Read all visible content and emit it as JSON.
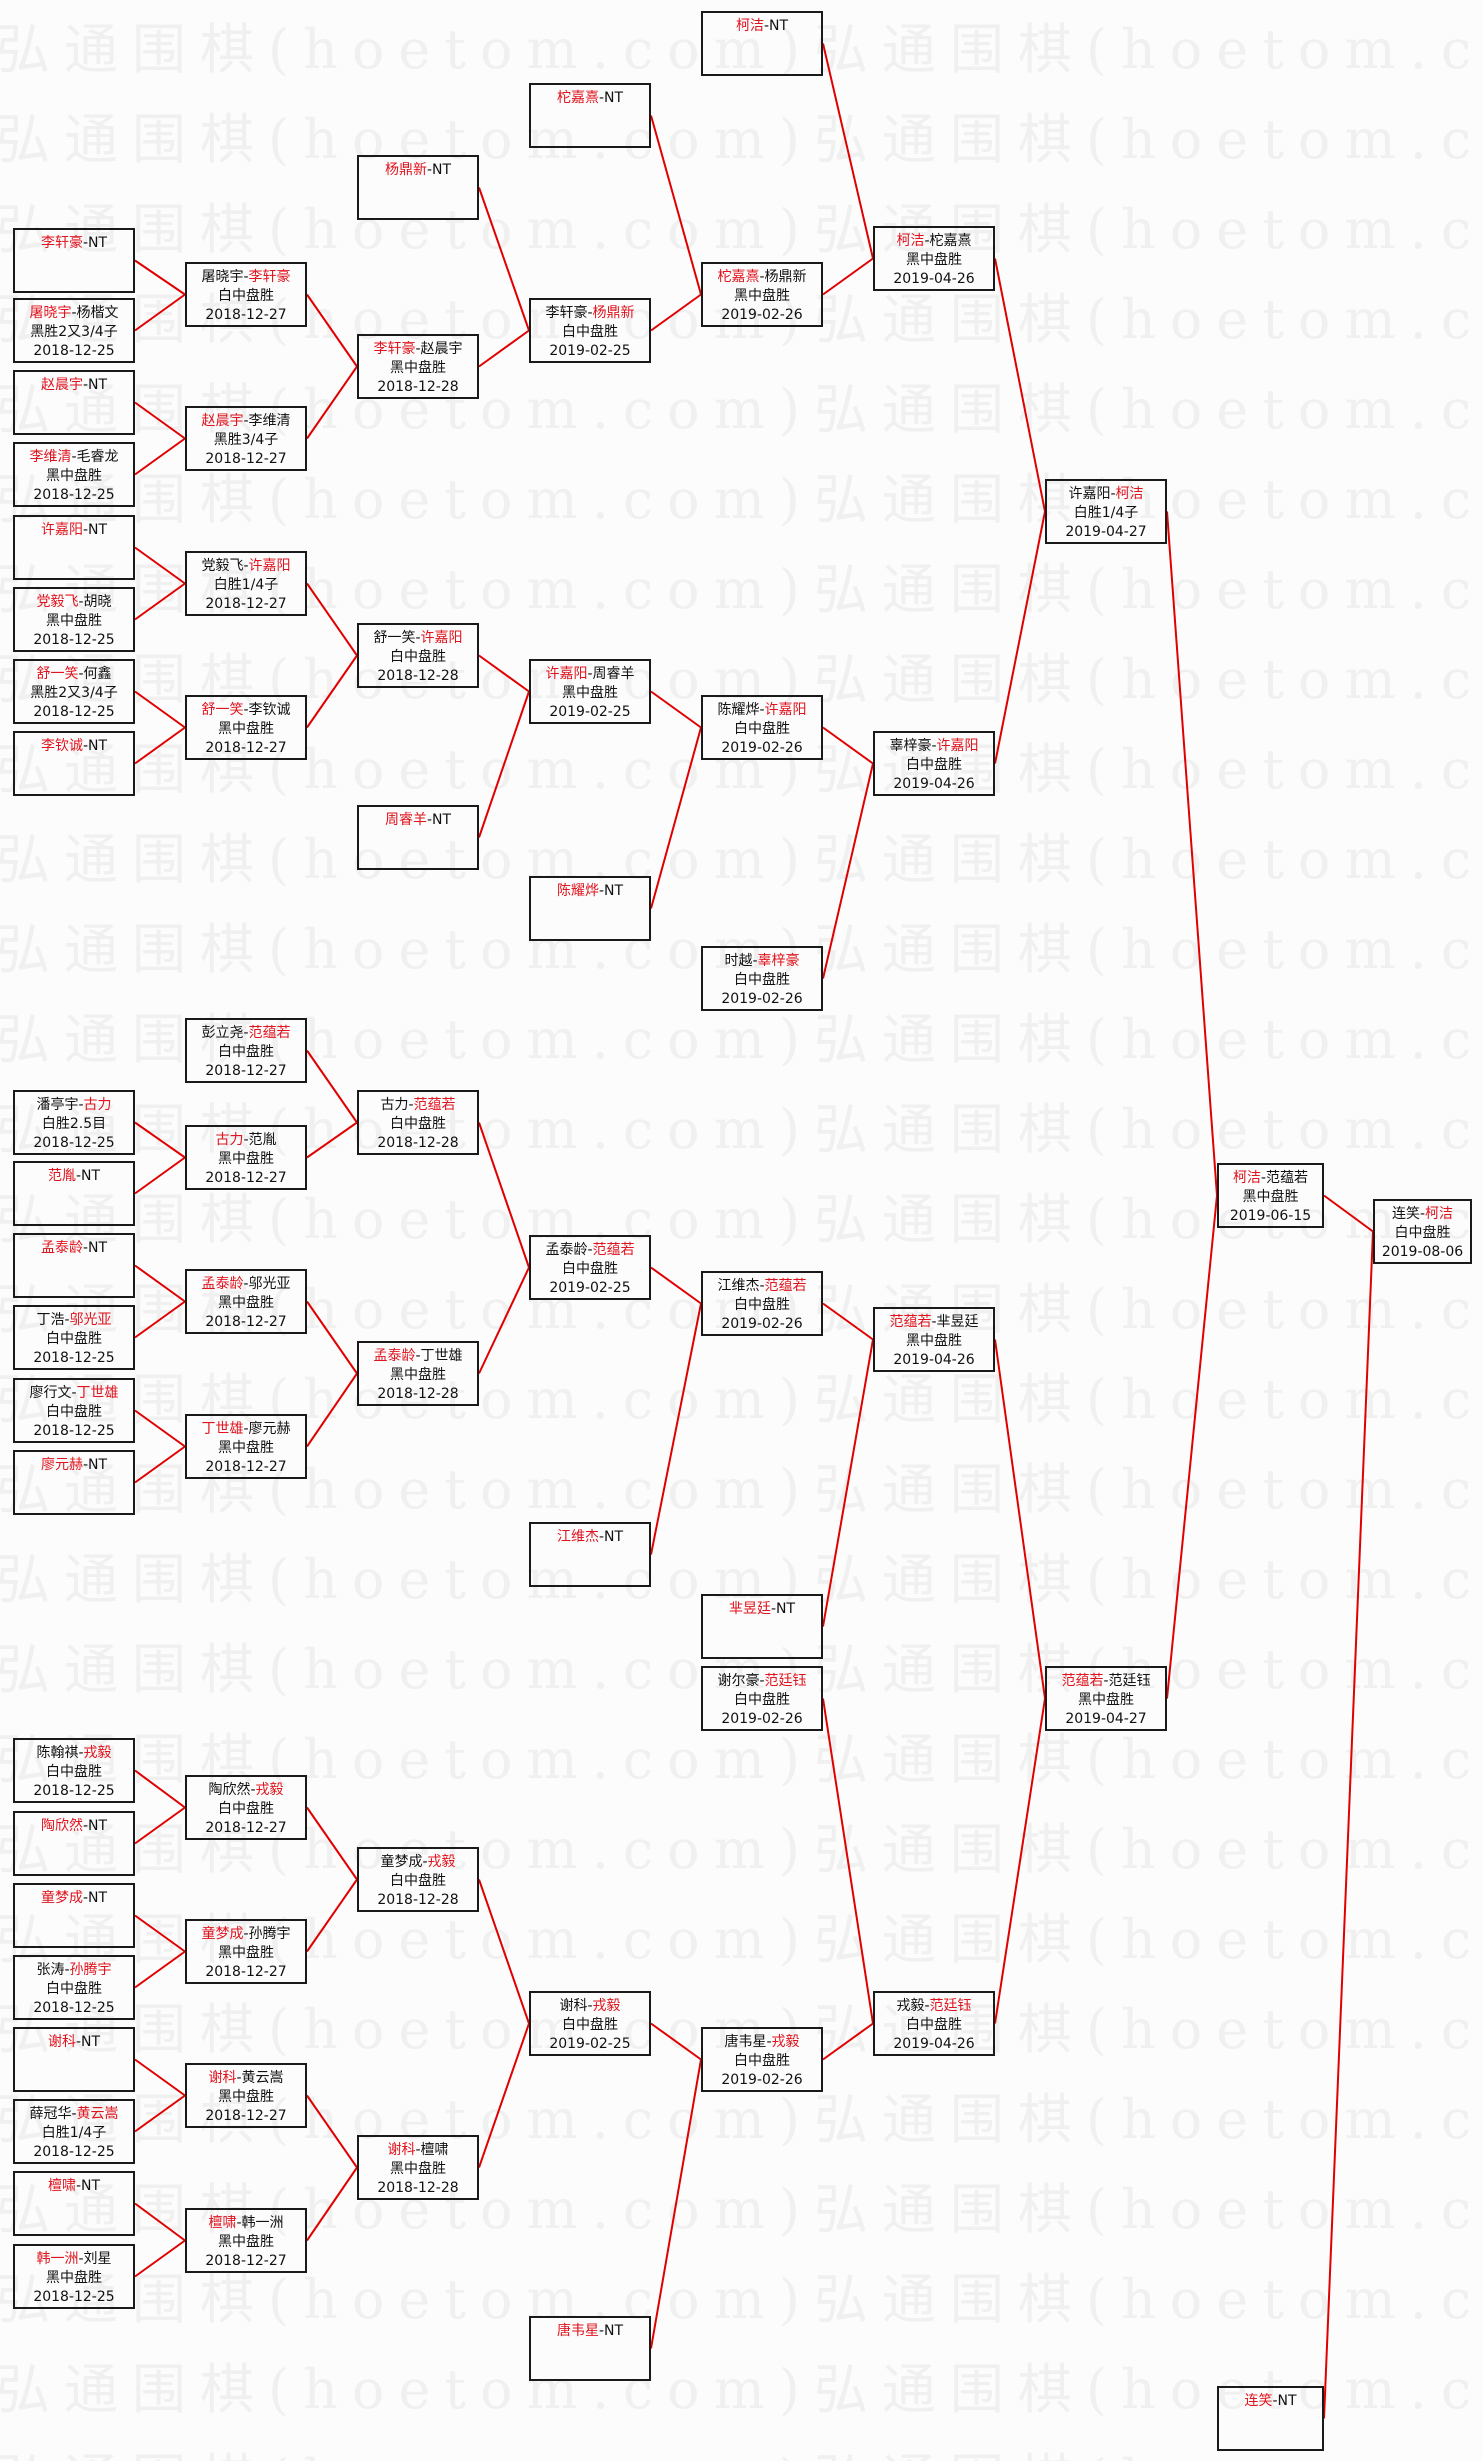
{
  "watermark": "弘通围棋(hoetom.com)",
  "colors": {
    "winner": "#e0141e",
    "connector": "#e00000",
    "border": "#1a1a1a"
  },
  "matches": [
    {
      "id": "c1_1",
      "a": "李轩豪",
      "b": "NT",
      "winner": "a",
      "next": "c2_1"
    },
    {
      "id": "c1_2",
      "a": "屠晓宇",
      "b": "杨楷文",
      "winner": "a",
      "result": "黑胜2又3/4子",
      "date": "2018-12-25",
      "next": "c2_1"
    },
    {
      "id": "c1_3",
      "a": "赵晨宇",
      "b": "NT",
      "winner": "a",
      "next": "c2_2"
    },
    {
      "id": "c1_4",
      "a": "李维清",
      "b": "毛睿龙",
      "winner": "a",
      "result": "黑中盘胜",
      "date": "2018-12-25",
      "next": "c2_2"
    },
    {
      "id": "c1_5",
      "a": "许嘉阳",
      "b": "NT",
      "winner": "a",
      "next": "c2_3"
    },
    {
      "id": "c1_6",
      "a": "党毅飞",
      "b": "胡晓",
      "winner": "a",
      "result": "黑中盘胜",
      "date": "2018-12-25",
      "next": "c2_3"
    },
    {
      "id": "c1_7",
      "a": "舒一笑",
      "b": "何鑫",
      "winner": "a",
      "result": "黑胜2又3/4子",
      "date": "2018-12-25",
      "next": "c2_4"
    },
    {
      "id": "c1_8",
      "a": "李钦诚",
      "b": "NT",
      "winner": "a",
      "next": "c2_4"
    },
    {
      "id": "c1_9",
      "a": "潘亭宇",
      "b": "古力",
      "winner": "b",
      "result": "白胜2.5目",
      "date": "2018-12-25",
      "next": "c2_6"
    },
    {
      "id": "c1_10",
      "a": "范胤",
      "b": "NT",
      "winner": "a",
      "next": "c2_6"
    },
    {
      "id": "c1_11",
      "a": "孟泰龄",
      "b": "NT",
      "winner": "a",
      "next": "c2_7"
    },
    {
      "id": "c1_12",
      "a": "丁浩",
      "b": "邬光亚",
      "winner": "b",
      "result": "白中盘胜",
      "date": "2018-12-25",
      "next": "c2_7"
    },
    {
      "id": "c1_13",
      "a": "廖行文",
      "b": "丁世雄",
      "winner": "b",
      "result": "白中盘胜",
      "date": "2018-12-25",
      "next": "c2_8"
    },
    {
      "id": "c1_14",
      "a": "廖元赫",
      "b": "NT",
      "winner": "a",
      "next": "c2_8"
    },
    {
      "id": "c1_15",
      "a": "陈翰祺",
      "b": "戎毅",
      "winner": "b",
      "result": "白中盘胜",
      "date": "2018-12-25",
      "next": "c2_9"
    },
    {
      "id": "c1_16",
      "a": "陶欣然",
      "b": "NT",
      "winner": "a",
      "next": "c2_9"
    },
    {
      "id": "c1_17",
      "a": "童梦成",
      "b": "NT",
      "winner": "a",
      "next": "c2_10"
    },
    {
      "id": "c1_18",
      "a": "张涛",
      "b": "孙腾宇",
      "winner": "b",
      "result": "白中盘胜",
      "date": "2018-12-25",
      "next": "c2_10"
    },
    {
      "id": "c1_19",
      "a": "谢科",
      "b": "NT",
      "winner": "a",
      "next": "c2_11"
    },
    {
      "id": "c1_20",
      "a": "薛冠华",
      "b": "黄云嵩",
      "winner": "b",
      "result": "白胜1/4子",
      "date": "2018-12-25",
      "next": "c2_11"
    },
    {
      "id": "c1_21",
      "a": "檀啸",
      "b": "NT",
      "winner": "a",
      "next": "c2_12"
    },
    {
      "id": "c1_22",
      "a": "韩一洲",
      "b": "刘星",
      "winner": "a",
      "result": "黑中盘胜",
      "date": "2018-12-25",
      "next": "c2_12"
    },
    {
      "id": "c2_1",
      "a": "屠晓宇",
      "b": "李轩豪",
      "winner": "b",
      "result": "白中盘胜",
      "date": "2018-12-27",
      "next": "c3_2"
    },
    {
      "id": "c2_2",
      "a": "赵晨宇",
      "b": "李维清",
      "winner": "a",
      "result": "黑胜3/4子",
      "date": "2018-12-27",
      "next": "c3_2"
    },
    {
      "id": "c2_3",
      "a": "党毅飞",
      "b": "许嘉阳",
      "winner": "b",
      "result": "白胜1/4子",
      "date": "2018-12-27",
      "next": "c3_3"
    },
    {
      "id": "c2_4",
      "a": "舒一笑",
      "b": "李钦诚",
      "winner": "a",
      "result": "黑中盘胜",
      "date": "2018-12-27",
      "next": "c3_3"
    },
    {
      "id": "c2_5",
      "a": "彭立尧",
      "b": "范蕴若",
      "winner": "b",
      "result": "白中盘胜",
      "date": "2018-12-27",
      "next": "c3_5"
    },
    {
      "id": "c2_6",
      "a": "古力",
      "b": "范胤",
      "winner": "a",
      "result": "黑中盘胜",
      "date": "2018-12-27",
      "next": "c3_5"
    },
    {
      "id": "c2_7",
      "a": "孟泰龄",
      "b": "邬光亚",
      "winner": "a",
      "result": "黑中盘胜",
      "date": "2018-12-27",
      "next": "c3_6"
    },
    {
      "id": "c2_8",
      "a": "丁世雄",
      "b": "廖元赫",
      "winner": "a",
      "result": "黑中盘胜",
      "date": "2018-12-27",
      "next": "c3_6"
    },
    {
      "id": "c2_9",
      "a": "陶欣然",
      "b": "戎毅",
      "winner": "b",
      "result": "白中盘胜",
      "date": "2018-12-27",
      "next": "c3_7"
    },
    {
      "id": "c2_10",
      "a": "童梦成",
      "b": "孙腾宇",
      "winner": "a",
      "result": "黑中盘胜",
      "date": "2018-12-27",
      "next": "c3_7"
    },
    {
      "id": "c2_11",
      "a": "谢科",
      "b": "黄云嵩",
      "winner": "a",
      "result": "黑中盘胜",
      "date": "2018-12-27",
      "next": "c3_8"
    },
    {
      "id": "c2_12",
      "a": "檀啸",
      "b": "韩一洲",
      "winner": "a",
      "result": "黑中盘胜",
      "date": "2018-12-27",
      "next": "c3_8"
    },
    {
      "id": "c3_1",
      "a": "杨鼎新",
      "b": "NT",
      "winner": "a",
      "next": "c4_2"
    },
    {
      "id": "c3_2",
      "a": "李轩豪",
      "b": "赵晨宇",
      "winner": "a",
      "result": "黑中盘胜",
      "date": "2018-12-28",
      "next": "c4_2"
    },
    {
      "id": "c3_3",
      "a": "舒一笑",
      "b": "许嘉阳",
      "winner": "b",
      "result": "白中盘胜",
      "date": "2018-12-28",
      "next": "c4_3"
    },
    {
      "id": "c3_4",
      "a": "周睿羊",
      "b": "NT",
      "winner": "a",
      "next": "c4_3"
    },
    {
      "id": "c3_5",
      "a": "古力",
      "b": "范蕴若",
      "winner": "b",
      "result": "白中盘胜",
      "date": "2018-12-28",
      "next": "c4_5"
    },
    {
      "id": "c3_6",
      "a": "孟泰龄",
      "b": "丁世雄",
      "winner": "a",
      "result": "黑中盘胜",
      "date": "2018-12-28",
      "next": "c4_5"
    },
    {
      "id": "c3_7",
      "a": "童梦成",
      "b": "戎毅",
      "winner": "b",
      "result": "白中盘胜",
      "date": "2018-12-28",
      "next": "c4_7"
    },
    {
      "id": "c3_8",
      "a": "谢科",
      "b": "檀啸",
      "winner": "a",
      "result": "黑中盘胜",
      "date": "2018-12-28",
      "next": "c4_7"
    },
    {
      "id": "c4_1",
      "a": "柁嘉熹",
      "b": "NT",
      "winner": "a",
      "next": "c5_2"
    },
    {
      "id": "c4_2",
      "a": "李轩豪",
      "b": "杨鼎新",
      "winner": "b",
      "result": "白中盘胜",
      "date": "2019-02-25",
      "next": "c5_2"
    },
    {
      "id": "c4_3",
      "a": "许嘉阳",
      "b": "周睿羊",
      "winner": "a",
      "result": "黑中盘胜",
      "date": "2019-02-25",
      "next": "c5_3"
    },
    {
      "id": "c4_4",
      "a": "陈耀烨",
      "b": "NT",
      "winner": "a",
      "next": "c5_3"
    },
    {
      "id": "c4_5",
      "a": "孟泰龄",
      "b": "范蕴若",
      "winner": "b",
      "result": "白中盘胜",
      "date": "2019-02-25",
      "next": "c5_5"
    },
    {
      "id": "c4_6",
      "a": "江维杰",
      "b": "NT",
      "winner": "a",
      "next": "c5_5"
    },
    {
      "id": "c4_7",
      "a": "谢科",
      "b": "戎毅",
      "winner": "b",
      "result": "白中盘胜",
      "date": "2019-02-25",
      "next": "c5_8"
    },
    {
      "id": "c4_8",
      "a": "唐韦星",
      "b": "NT",
      "winner": "a",
      "next": "c5_8"
    },
    {
      "id": "c5_1",
      "a": "柯洁",
      "b": "NT",
      "winner": "a",
      "next": "c6_1"
    },
    {
      "id": "c5_2",
      "a": "柁嘉熹",
      "b": "杨鼎新",
      "winner": "a",
      "result": "黑中盘胜",
      "date": "2019-02-26",
      "next": "c6_1"
    },
    {
      "id": "c5_3",
      "a": "陈耀烨",
      "b": "许嘉阳",
      "winner": "b",
      "result": "白中盘胜",
      "date": "2019-02-26",
      "next": "c6_2"
    },
    {
      "id": "c5_4",
      "a": "时越",
      "b": "辜梓豪",
      "winner": "b",
      "result": "白中盘胜",
      "date": "2019-02-26",
      "next": "c6_2"
    },
    {
      "id": "c5_5",
      "a": "江维杰",
      "b": "范蕴若",
      "winner": "b",
      "result": "白中盘胜",
      "date": "2019-02-26",
      "next": "c6_3"
    },
    {
      "id": "c5_6",
      "a": "芈昱廷",
      "b": "NT",
      "winner": "a",
      "next": "c6_3"
    },
    {
      "id": "c5_7",
      "a": "谢尔豪",
      "b": "范廷钰",
      "winner": "b",
      "result": "白中盘胜",
      "date": "2019-02-26",
      "next": "c6_4"
    },
    {
      "id": "c5_8",
      "a": "唐韦星",
      "b": "戎毅",
      "winner": "b",
      "result": "白中盘胜",
      "date": "2019-02-26",
      "next": "c6_4"
    },
    {
      "id": "c6_1",
      "a": "柯洁",
      "b": "柁嘉熹",
      "winner": "a",
      "result": "黑中盘胜",
      "date": "2019-04-26",
      "next": "c7_1"
    },
    {
      "id": "c6_2",
      "a": "辜梓豪",
      "b": "许嘉阳",
      "winner": "b",
      "result": "白中盘胜",
      "date": "2019-04-26",
      "next": "c7_1"
    },
    {
      "id": "c6_3",
      "a": "范蕴若",
      "b": "芈昱廷",
      "winner": "a",
      "result": "黑中盘胜",
      "date": "2019-04-26",
      "next": "c7_2"
    },
    {
      "id": "c6_4",
      "a": "戎毅",
      "b": "范廷钰",
      "winner": "b",
      "result": "白中盘胜",
      "date": "2019-04-26",
      "next": "c7_2"
    },
    {
      "id": "c7_1",
      "a": "许嘉阳",
      "b": "柯洁",
      "winner": "b",
      "result": "白胜1/4子",
      "date": "2019-04-27",
      "next": "c8_1"
    },
    {
      "id": "c7_2",
      "a": "范蕴若",
      "b": "范廷钰",
      "winner": "a",
      "result": "黑中盘胜",
      "date": "2019-04-27",
      "next": "c8_1"
    },
    {
      "id": "c8_1",
      "a": "柯洁",
      "b": "范蕴若",
      "winner": "a",
      "result": "黑中盘胜",
      "date": "2019-06-15",
      "next": "f"
    },
    {
      "id": "c8_2",
      "a": "连笑",
      "b": "NT",
      "winner": "a",
      "next": "f"
    },
    {
      "id": "f",
      "a": "连笑",
      "b": "柯洁",
      "winner": "b",
      "result": "白中盘胜",
      "date": "2019-08-06"
    }
  ]
}
